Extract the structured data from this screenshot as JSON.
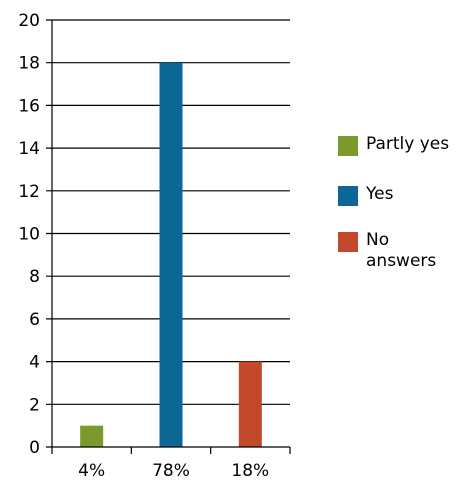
{
  "chart_data": {
    "type": "bar",
    "categories": [
      "4%",
      "78%",
      "18%"
    ],
    "series": [
      {
        "name": "Partly yes",
        "values": [
          1,
          null,
          null
        ],
        "color": "#7a9a2b"
      },
      {
        "name": "Yes",
        "values": [
          null,
          18,
          null
        ],
        "color": "#0d6795"
      },
      {
        "name": "No answers",
        "values": [
          null,
          null,
          4
        ],
        "color": "#c1482b"
      }
    ],
    "values": [
      1,
      18,
      4
    ],
    "title": "",
    "xlabel": "",
    "ylabel": "",
    "ylim": [
      0,
      20
    ],
    "yticks": [
      0,
      2,
      4,
      6,
      8,
      10,
      12,
      14,
      16,
      18,
      20
    ],
    "grid": true,
    "legend_position": "right"
  },
  "legend": {
    "items": [
      {
        "label": "Partly yes",
        "color": "#7a9a2b"
      },
      {
        "label": "Yes",
        "color": "#0d6795"
      },
      {
        "label": "No\nanswers",
        "color": "#c1482b"
      }
    ]
  }
}
